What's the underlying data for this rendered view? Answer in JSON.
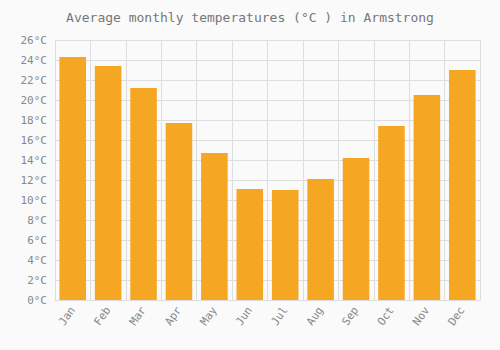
{
  "chart_data": {
    "type": "bar",
    "title": "Average monthly temperatures (°C ) in Armstrong",
    "categories": [
      "Jan",
      "Feb",
      "Mar",
      "Apr",
      "May",
      "Jun",
      "Jul",
      "Aug",
      "Sep",
      "Oct",
      "Nov",
      "Dec"
    ],
    "values": [
      24.3,
      23.4,
      21.2,
      17.7,
      14.7,
      11.1,
      11.0,
      12.1,
      14.2,
      17.4,
      20.5,
      23.0
    ],
    "color": "#F5A623",
    "ylim": [
      0,
      26
    ],
    "yticks": [
      {
        "value": 0,
        "label": "0°C"
      },
      {
        "value": 2,
        "label": "2°C"
      },
      {
        "value": 4,
        "label": "4°C"
      },
      {
        "value": 6,
        "label": "6°C"
      },
      {
        "value": 8,
        "label": "8°C"
      },
      {
        "value": 10,
        "label": "10°C"
      },
      {
        "value": 12,
        "label": "12°C"
      },
      {
        "value": 14,
        "label": "14°C"
      },
      {
        "value": 16,
        "label": "16°C"
      },
      {
        "value": 18,
        "label": "18°C"
      },
      {
        "value": 20,
        "label": "20°C"
      },
      {
        "value": 22,
        "label": "22°C"
      },
      {
        "value": 24,
        "label": "24°C"
      },
      {
        "value": 26,
        "label": "26°C"
      }
    ],
    "grid": true
  }
}
